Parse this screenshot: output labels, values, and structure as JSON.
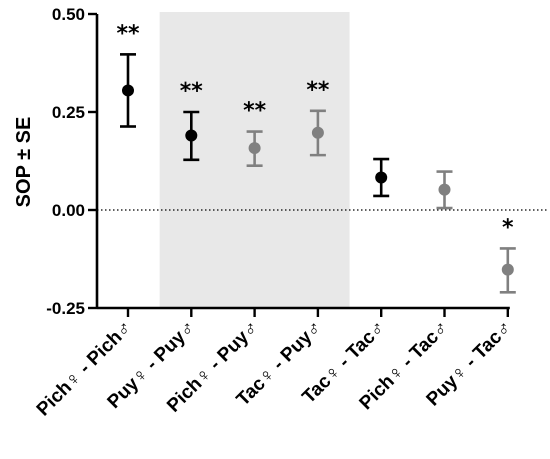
{
  "chart_data": {
    "type": "scatter",
    "ylabel": "SOP ± SE",
    "ylim": [
      -0.25,
      0.5
    ],
    "yticks": [
      "0.50",
      "0.25",
      "0.00",
      "-0.25"
    ],
    "categories": [
      "Pich♀ - Pich♂",
      "Puy♀ - Puy♂",
      "Pich♀ - Puy♂",
      "Tac♀ - Puy♂",
      "Tac♀ - Tac♂",
      "Pich♀ - Tac♂",
      "Puy♀ - Tac♂"
    ],
    "values": [
      0.305,
      0.19,
      0.158,
      0.197,
      0.083,
      0.052,
      -0.152
    ],
    "se_low": [
      0.213,
      0.128,
      0.113,
      0.14,
      0.036,
      0.005,
      -0.21
    ],
    "se_high": [
      0.397,
      0.25,
      0.2,
      0.253,
      0.13,
      0.098,
      -0.098
    ],
    "significance": [
      "**",
      "**",
      "**",
      "**",
      "",
      "",
      "*"
    ],
    "colors": [
      "#000000",
      "#000000",
      "#808080",
      "#808080",
      "#000000",
      "#808080",
      "#808080"
    ],
    "shaded_categories": [
      1,
      2,
      3
    ],
    "shade_color": "#e8e8e8",
    "zero_reference_line": "dotted",
    "grid": false,
    "legend": "none"
  }
}
